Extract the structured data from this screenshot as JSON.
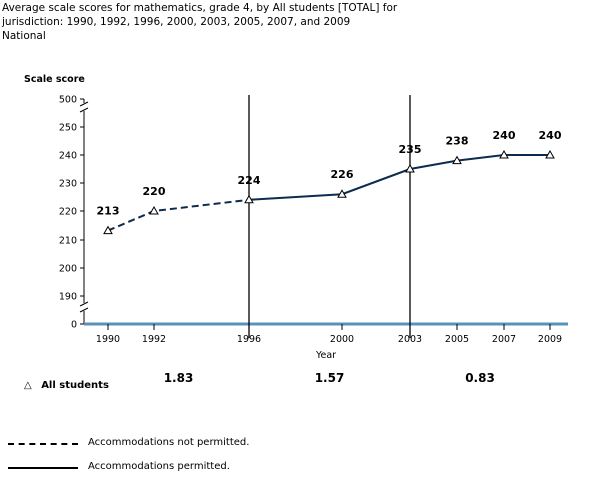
{
  "title": {
    "line1": "Average scale scores for mathematics, grade 4, by All students [TOTAL] for",
    "line2": "jurisdiction: 1990, 1992, 1996, 2000, 2003, 2005, 2007, and 2009",
    "line3": "National"
  },
  "chart_data": {
    "type": "line",
    "ylabel": "Scale score",
    "xlabel": "Year",
    "x": [
      1990,
      1992,
      1996,
      2000,
      2003,
      2005,
      2007,
      2009
    ],
    "y_ticks": [
      "0",
      "190",
      "200",
      "210",
      "220",
      "230",
      "240",
      "250",
      "500"
    ],
    "axis_breaks": "y-axis broken between 0 and 190 and between 250 and 500",
    "series": [
      {
        "name": "All students",
        "marker": "triangle",
        "values": [
          213,
          220,
          224,
          226,
          235,
          238,
          240,
          240
        ],
        "labels": [
          "213",
          "220",
          "224",
          "226",
          "235",
          "238",
          "240",
          "240"
        ]
      }
    ],
    "segments": [
      {
        "from": 1990,
        "to": 1996,
        "style": "dashed"
      },
      {
        "from": 1996,
        "to": 2009,
        "style": "solid"
      }
    ],
    "vertical_lines": [
      1996,
      2003
    ],
    "interval_stats": [
      {
        "from": 1990,
        "to": 1996,
        "value": "1.83"
      },
      {
        "from": 1996,
        "to": 2003,
        "value": "1.57"
      },
      {
        "from": 2003,
        "to": 2009,
        "value": "0.83"
      }
    ],
    "grid": false,
    "colors": {
      "line": "#0d2b4e",
      "baseline": "#5b93b8",
      "axis": "#000000"
    }
  },
  "legend": {
    "dashed_label": "Accommodations not permitted.",
    "solid_label": "Accommodations permitted."
  }
}
